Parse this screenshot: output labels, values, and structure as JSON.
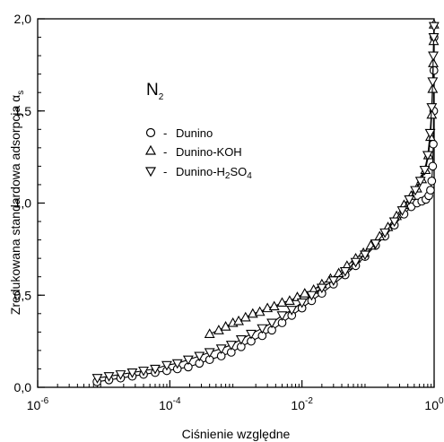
{
  "chart_data": {
    "type": "scatter",
    "title": "N",
    "title_subscript": "2",
    "xlabel": "Ciśnienie względne",
    "ylabel": "Zredukowana standardowa adsorpcja α",
    "ylabel_subscript": "s",
    "x_scale": "log",
    "xlim": [
      1e-06,
      1
    ],
    "ylim": [
      0,
      2.0
    ],
    "x_ticks": [
      {
        "value": 1e-06,
        "base": "10",
        "exp": "-6"
      },
      {
        "value": 0.0001,
        "base": "10",
        "exp": "-4"
      },
      {
        "value": 0.01,
        "base": "10",
        "exp": "-2"
      },
      {
        "value": 1,
        "base": "10",
        "exp": "0"
      }
    ],
    "y_ticks": [
      {
        "value": 0,
        "label": "0,0"
      },
      {
        "value": 0.5,
        "label": "0,5"
      },
      {
        "value": 1.0,
        "label": "1,0"
      },
      {
        "value": 1.5,
        "label": "1,5"
      },
      {
        "value": 2.0,
        "label": "2,0"
      }
    ],
    "grid": false,
    "legend_position": "upper-left",
    "series": [
      {
        "name": "Dunino",
        "marker": "circle",
        "points": [
          [
            7.9e-06,
            0.03
          ],
          [
            1.2e-05,
            0.04
          ],
          [
            1.8e-05,
            0.05
          ],
          [
            2.7e-05,
            0.06
          ],
          [
            4e-05,
            0.07
          ],
          [
            6e-05,
            0.08
          ],
          [
            9e-05,
            0.09
          ],
          [
            0.00013,
            0.1
          ],
          [
            0.00019,
            0.11
          ],
          [
            0.00028,
            0.13
          ],
          [
            0.0004,
            0.15
          ],
          [
            0.0006,
            0.17
          ],
          [
            0.00085,
            0.19
          ],
          [
            0.0012,
            0.22
          ],
          [
            0.0017,
            0.25
          ],
          [
            0.0025,
            0.28
          ],
          [
            0.0035,
            0.31
          ],
          [
            0.005,
            0.35
          ],
          [
            0.007,
            0.39
          ],
          [
            0.01,
            0.43
          ],
          [
            0.014,
            0.47
          ],
          [
            0.02,
            0.51
          ],
          [
            0.03,
            0.56
          ],
          [
            0.045,
            0.61
          ],
          [
            0.065,
            0.66
          ],
          [
            0.09,
            0.71
          ],
          [
            0.13,
            0.77
          ],
          [
            0.18,
            0.82
          ],
          [
            0.25,
            0.88
          ],
          [
            0.35,
            0.94
          ],
          [
            0.45,
            0.98
          ],
          [
            0.55,
            1.0
          ],
          [
            0.65,
            1.01
          ],
          [
            0.75,
            1.02
          ],
          [
            0.83,
            1.04
          ],
          [
            0.88,
            1.07
          ],
          [
            0.92,
            1.12
          ],
          [
            0.95,
            1.2
          ],
          [
            0.97,
            1.32
          ],
          [
            0.985,
            1.5
          ],
          [
            0.993,
            1.72
          ],
          [
            0.997,
            1.9
          ]
        ]
      },
      {
        "name": "Dunino-KOH",
        "marker": "triangle-up",
        "points": [
          [
            0.0004,
            0.29
          ],
          [
            0.00055,
            0.31
          ],
          [
            0.0007,
            0.33
          ],
          [
            0.0009,
            0.35
          ],
          [
            0.0011,
            0.36
          ],
          [
            0.0014,
            0.38
          ],
          [
            0.0018,
            0.4
          ],
          [
            0.0023,
            0.41
          ],
          [
            0.003,
            0.43
          ],
          [
            0.0038,
            0.44
          ],
          [
            0.005,
            0.46
          ],
          [
            0.0065,
            0.47
          ],
          [
            0.0085,
            0.49
          ],
          [
            0.011,
            0.51
          ],
          [
            0.015,
            0.53
          ],
          [
            0.02,
            0.56
          ],
          [
            0.027,
            0.59
          ],
          [
            0.036,
            0.62
          ],
          [
            0.048,
            0.66
          ],
          [
            0.065,
            0.7
          ],
          [
            0.085,
            0.73
          ],
          [
            0.11,
            0.77
          ],
          [
            0.15,
            0.82
          ],
          [
            0.2,
            0.87
          ],
          [
            0.27,
            0.93
          ],
          [
            0.35,
            0.99
          ],
          [
            0.45,
            1.04
          ],
          [
            0.55,
            1.08
          ],
          [
            0.65,
            1.13
          ],
          [
            0.74,
            1.18
          ],
          [
            0.82,
            1.26
          ],
          [
            0.88,
            1.36
          ],
          [
            0.92,
            1.48
          ],
          [
            0.95,
            1.62
          ],
          [
            0.97,
            1.76
          ],
          [
            0.985,
            1.88
          ],
          [
            0.995,
            1.97
          ]
        ]
      },
      {
        "name": "Dunino-H2SO4",
        "name_main": "Dunino-H",
        "name_sub1": "2",
        "name_mid": "SO",
        "name_sub2": "4",
        "marker": "triangle-down",
        "points": [
          [
            8e-06,
            0.05
          ],
          [
            1.2e-05,
            0.06
          ],
          [
            1.8e-05,
            0.07
          ],
          [
            2.7e-05,
            0.08
          ],
          [
            4e-05,
            0.09
          ],
          [
            6e-05,
            0.1
          ],
          [
            9e-05,
            0.12
          ],
          [
            0.00013,
            0.13
          ],
          [
            0.00019,
            0.15
          ],
          [
            0.00028,
            0.17
          ],
          [
            0.0004,
            0.19
          ],
          [
            0.0006,
            0.21
          ],
          [
            0.00085,
            0.23
          ],
          [
            0.0012,
            0.26
          ],
          [
            0.0017,
            0.29
          ],
          [
            0.0025,
            0.32
          ],
          [
            0.0035,
            0.35
          ],
          [
            0.005,
            0.39
          ],
          [
            0.007,
            0.42
          ],
          [
            0.01,
            0.46
          ],
          [
            0.014,
            0.5
          ],
          [
            0.02,
            0.54
          ],
          [
            0.03,
            0.58
          ],
          [
            0.045,
            0.63
          ],
          [
            0.065,
            0.68
          ],
          [
            0.09,
            0.72
          ],
          [
            0.13,
            0.78
          ],
          [
            0.18,
            0.84
          ],
          [
            0.25,
            0.9
          ],
          [
            0.33,
            0.96
          ],
          [
            0.42,
            1.02
          ],
          [
            0.52,
            1.07
          ],
          [
            0.62,
            1.12
          ],
          [
            0.72,
            1.18
          ],
          [
            0.8,
            1.26
          ],
          [
            0.87,
            1.38
          ],
          [
            0.92,
            1.52
          ],
          [
            0.95,
            1.66
          ],
          [
            0.97,
            1.8
          ],
          [
            0.985,
            1.9
          ],
          [
            0.995,
            1.96
          ]
        ]
      }
    ]
  }
}
